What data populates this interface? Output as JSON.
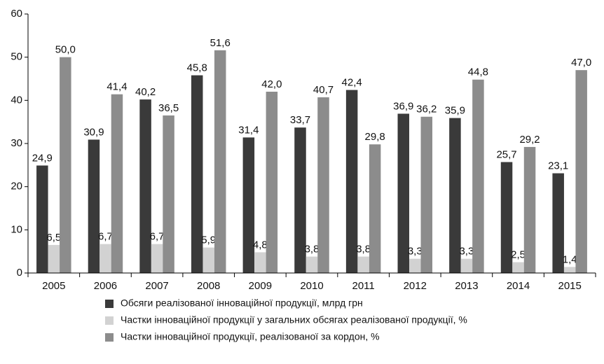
{
  "chart_data": {
    "type": "bar",
    "categories": [
      "2005",
      "2006",
      "2007",
      "2008",
      "2009",
      "2010",
      "2011",
      "2012",
      "2013",
      "2014",
      "2015"
    ],
    "series": [
      {
        "name": "Обсяги реалізованої інноваційної продукції, млрд грн",
        "color": "#3a3a3a",
        "values": [
          24.9,
          30.9,
          40.2,
          45.8,
          31.4,
          33.7,
          42.4,
          36.9,
          35.9,
          25.7,
          23.1
        ],
        "value_labels": [
          "24,9",
          "30,9",
          "40,2",
          "45,8",
          "31,4",
          "33,7",
          "42,4",
          "36,9",
          "35,9",
          "25,7",
          "23,1"
        ]
      },
      {
        "name": "Частки інноваційної продукції у загальних обсягах реалізованої продукції, %",
        "color": "#d2d2d2",
        "values": [
          6.5,
          6.7,
          6.7,
          5.9,
          4.8,
          3.8,
          3.8,
          3.3,
          3.3,
          2.5,
          1.4
        ],
        "value_labels": [
          "6,5",
          "6,7",
          "6,7",
          "5,9",
          "4,8",
          "3,8",
          "3,8",
          "3,3",
          "3,3",
          "2,5",
          "1,4"
        ]
      },
      {
        "name": "Частки інноваційної продукції, реалізованої за кордон, %",
        "color": "#8c8c8c",
        "values": [
          50.0,
          41.4,
          36.5,
          51.6,
          42.0,
          40.7,
          29.8,
          36.2,
          44.8,
          29.2,
          47.0
        ],
        "value_labels": [
          "50,0",
          "41,4",
          "36,5",
          "51,6",
          "42,0",
          "40,7",
          "29,8",
          "36,2",
          "44,8",
          "29,2",
          "47,0"
        ]
      }
    ],
    "ylim": [
      0,
      60
    ],
    "yticks": [
      0,
      10,
      20,
      30,
      40,
      50,
      60
    ],
    "grid": false
  }
}
